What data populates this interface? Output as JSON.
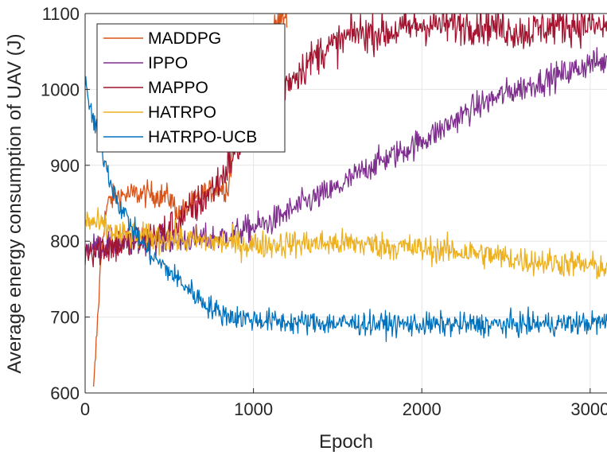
{
  "chart_data": {
    "type": "line",
    "title": "",
    "xlabel": "Epoch",
    "ylabel": "Average energy consumption of UAV (J)",
    "xlim": [
      0,
      3100
    ],
    "ylim": [
      600,
      1100
    ],
    "xticks": [
      0,
      1000,
      2000,
      3000
    ],
    "xtick_labels": [
      "0",
      "1000",
      "2000",
      "3000"
    ],
    "yticks": [
      600,
      700,
      800,
      900,
      1000,
      1100
    ],
    "ytick_labels": [
      "600",
      "700",
      "800",
      "900",
      "1000",
      "1100"
    ],
    "grid": true,
    "legend_position": "top-left",
    "series": [
      {
        "name": "MADDPG",
        "color": "#D95319",
        "noise": 12,
        "points": [
          [
            50,
            600
          ],
          [
            70,
            680
          ],
          [
            90,
            760
          ],
          [
            110,
            820
          ],
          [
            130,
            845
          ],
          [
            150,
            855
          ],
          [
            200,
            860
          ],
          [
            300,
            862
          ],
          [
            400,
            862
          ],
          [
            500,
            858
          ],
          [
            560,
            835
          ],
          [
            600,
            842
          ],
          [
            700,
            862
          ],
          [
            800,
            870
          ],
          [
            850,
            870
          ],
          [
            870,
            905
          ],
          [
            900,
            960
          ],
          [
            950,
            1010
          ],
          [
            1000,
            1040
          ],
          [
            1100,
            1070
          ],
          [
            1150,
            1090
          ],
          [
            1200,
            1100
          ]
        ]
      },
      {
        "name": "IPPO",
        "color": "#7E2F8E",
        "noise": 13,
        "points": [
          [
            0,
            790
          ],
          [
            200,
            797
          ],
          [
            500,
            800
          ],
          [
            800,
            805
          ],
          [
            1100,
            825
          ],
          [
            1300,
            850
          ],
          [
            1500,
            870
          ],
          [
            1700,
            900
          ],
          [
            1900,
            920
          ],
          [
            2100,
            945
          ],
          [
            2300,
            975
          ],
          [
            2500,
            995
          ],
          [
            2700,
            1010
          ],
          [
            2900,
            1025
          ],
          [
            3000,
            1035
          ],
          [
            3100,
            1035
          ]
        ]
      },
      {
        "name": "MAPPO",
        "color": "#A2142F",
        "noise": 18,
        "points": [
          [
            0,
            790
          ],
          [
            200,
            795
          ],
          [
            400,
            805
          ],
          [
            500,
            815
          ],
          [
            600,
            835
          ],
          [
            700,
            855
          ],
          [
            800,
            880
          ],
          [
            900,
            920
          ],
          [
            1000,
            955
          ],
          [
            1100,
            990
          ],
          [
            1200,
            1010
          ],
          [
            1300,
            1030
          ],
          [
            1400,
            1050
          ],
          [
            1500,
            1060
          ],
          [
            1600,
            1075
          ],
          [
            1800,
            1075
          ],
          [
            2000,
            1085
          ],
          [
            2200,
            1085
          ],
          [
            2400,
            1085
          ],
          [
            2600,
            1075
          ],
          [
            2800,
            1085
          ],
          [
            3000,
            1085
          ],
          [
            3100,
            1080
          ]
        ]
      },
      {
        "name": "HATRPO",
        "color": "#EDB120",
        "noise": 13,
        "points": [
          [
            0,
            828
          ],
          [
            100,
            820
          ],
          [
            200,
            808
          ],
          [
            400,
            805
          ],
          [
            700,
            800
          ],
          [
            1000,
            795
          ],
          [
            1300,
            797
          ],
          [
            1600,
            797
          ],
          [
            2000,
            790
          ],
          [
            2300,
            785
          ],
          [
            2600,
            775
          ],
          [
            2900,
            770
          ],
          [
            3100,
            765
          ]
        ]
      },
      {
        "name": "HATRPO-UCB",
        "color": "#0072BD",
        "noise": 11,
        "points": [
          [
            0,
            1005
          ],
          [
            20,
            985
          ],
          [
            60,
            950
          ],
          [
            100,
            920
          ],
          [
            150,
            880
          ],
          [
            200,
            850
          ],
          [
            250,
            830
          ],
          [
            300,
            810
          ],
          [
            400,
            780
          ],
          [
            500,
            760
          ],
          [
            600,
            740
          ],
          [
            700,
            720
          ],
          [
            800,
            705
          ],
          [
            900,
            700
          ],
          [
            1000,
            697
          ],
          [
            1200,
            693
          ],
          [
            1500,
            692
          ],
          [
            2000,
            690
          ],
          [
            2500,
            690
          ],
          [
            3000,
            692
          ],
          [
            3100,
            693
          ]
        ]
      }
    ]
  }
}
